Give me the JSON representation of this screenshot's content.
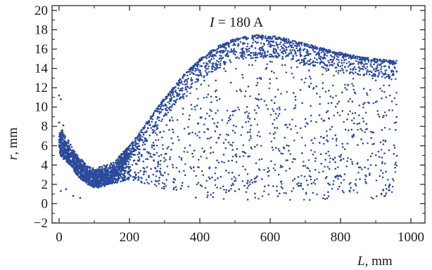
{
  "chart_data": {
    "type": "scatter",
    "title": "",
    "annotation": {
      "var": "I",
      "rest": " = 180 A"
    },
    "xlabel": {
      "var": "L",
      "unit": ", mm"
    },
    "ylabel": {
      "var": "r",
      "unit": ", mm"
    },
    "xlim": [
      -20,
      1040
    ],
    "ylim": [
      -2,
      20.5
    ],
    "x_ticks": [
      0,
      200,
      400,
      600,
      800,
      1000
    ],
    "y_ticks": [
      -2,
      0,
      2,
      4,
      6,
      8,
      10,
      12,
      14,
      16,
      18,
      20
    ],
    "grid": false,
    "point_color": "#2b4a9b",
    "series": [
      {
        "point_count": 6000,
        "x_range": [
          0,
          960
        ],
        "upper_envelope": [
          [
            0,
            8.5
          ],
          [
            20,
            7.0
          ],
          [
            50,
            5.2
          ],
          [
            80,
            4.0
          ],
          [
            110,
            3.8
          ],
          [
            150,
            4.3
          ],
          [
            200,
            6.0
          ],
          [
            250,
            8.5
          ],
          [
            300,
            11.0
          ],
          [
            350,
            13.2
          ],
          [
            400,
            15.0
          ],
          [
            450,
            16.3
          ],
          [
            500,
            17.1
          ],
          [
            560,
            17.5
          ],
          [
            620,
            17.3
          ],
          [
            700,
            16.6
          ],
          [
            780,
            15.8
          ],
          [
            860,
            15.2
          ],
          [
            950,
            14.8
          ]
        ],
        "lower_envelope": [
          [
            0,
            5.0
          ],
          [
            30,
            4.0
          ],
          [
            60,
            2.5
          ],
          [
            90,
            1.8
          ],
          [
            110,
            1.6
          ],
          [
            150,
            2.0
          ],
          [
            200,
            2.5
          ],
          [
            300,
            1.5
          ],
          [
            400,
            0.5
          ],
          [
            600,
            0.2
          ],
          [
            800,
            0.5
          ],
          [
            950,
            0.5
          ]
        ],
        "dense_band": [
          [
            0,
            6.5
          ],
          [
            50,
            4.0
          ],
          [
            100,
            2.5
          ],
          [
            150,
            3.0
          ],
          [
            200,
            5.5
          ],
          [
            250,
            8.0
          ],
          [
            300,
            10.5
          ],
          [
            400,
            14.5
          ],
          [
            500,
            16.5
          ],
          [
            600,
            16.8
          ],
          [
            700,
            16.0
          ],
          [
            800,
            15.2
          ],
          [
            950,
            14.5
          ]
        ],
        "outliers": [
          [
            0,
            11.2
          ],
          [
            5,
            10.8
          ],
          [
            0,
            8.4
          ],
          [
            12,
            8.1
          ],
          [
            5,
            1.3
          ],
          [
            20,
            1.5
          ],
          [
            40,
            0.8
          ],
          [
            60,
            0.6
          ]
        ]
      }
    ]
  }
}
